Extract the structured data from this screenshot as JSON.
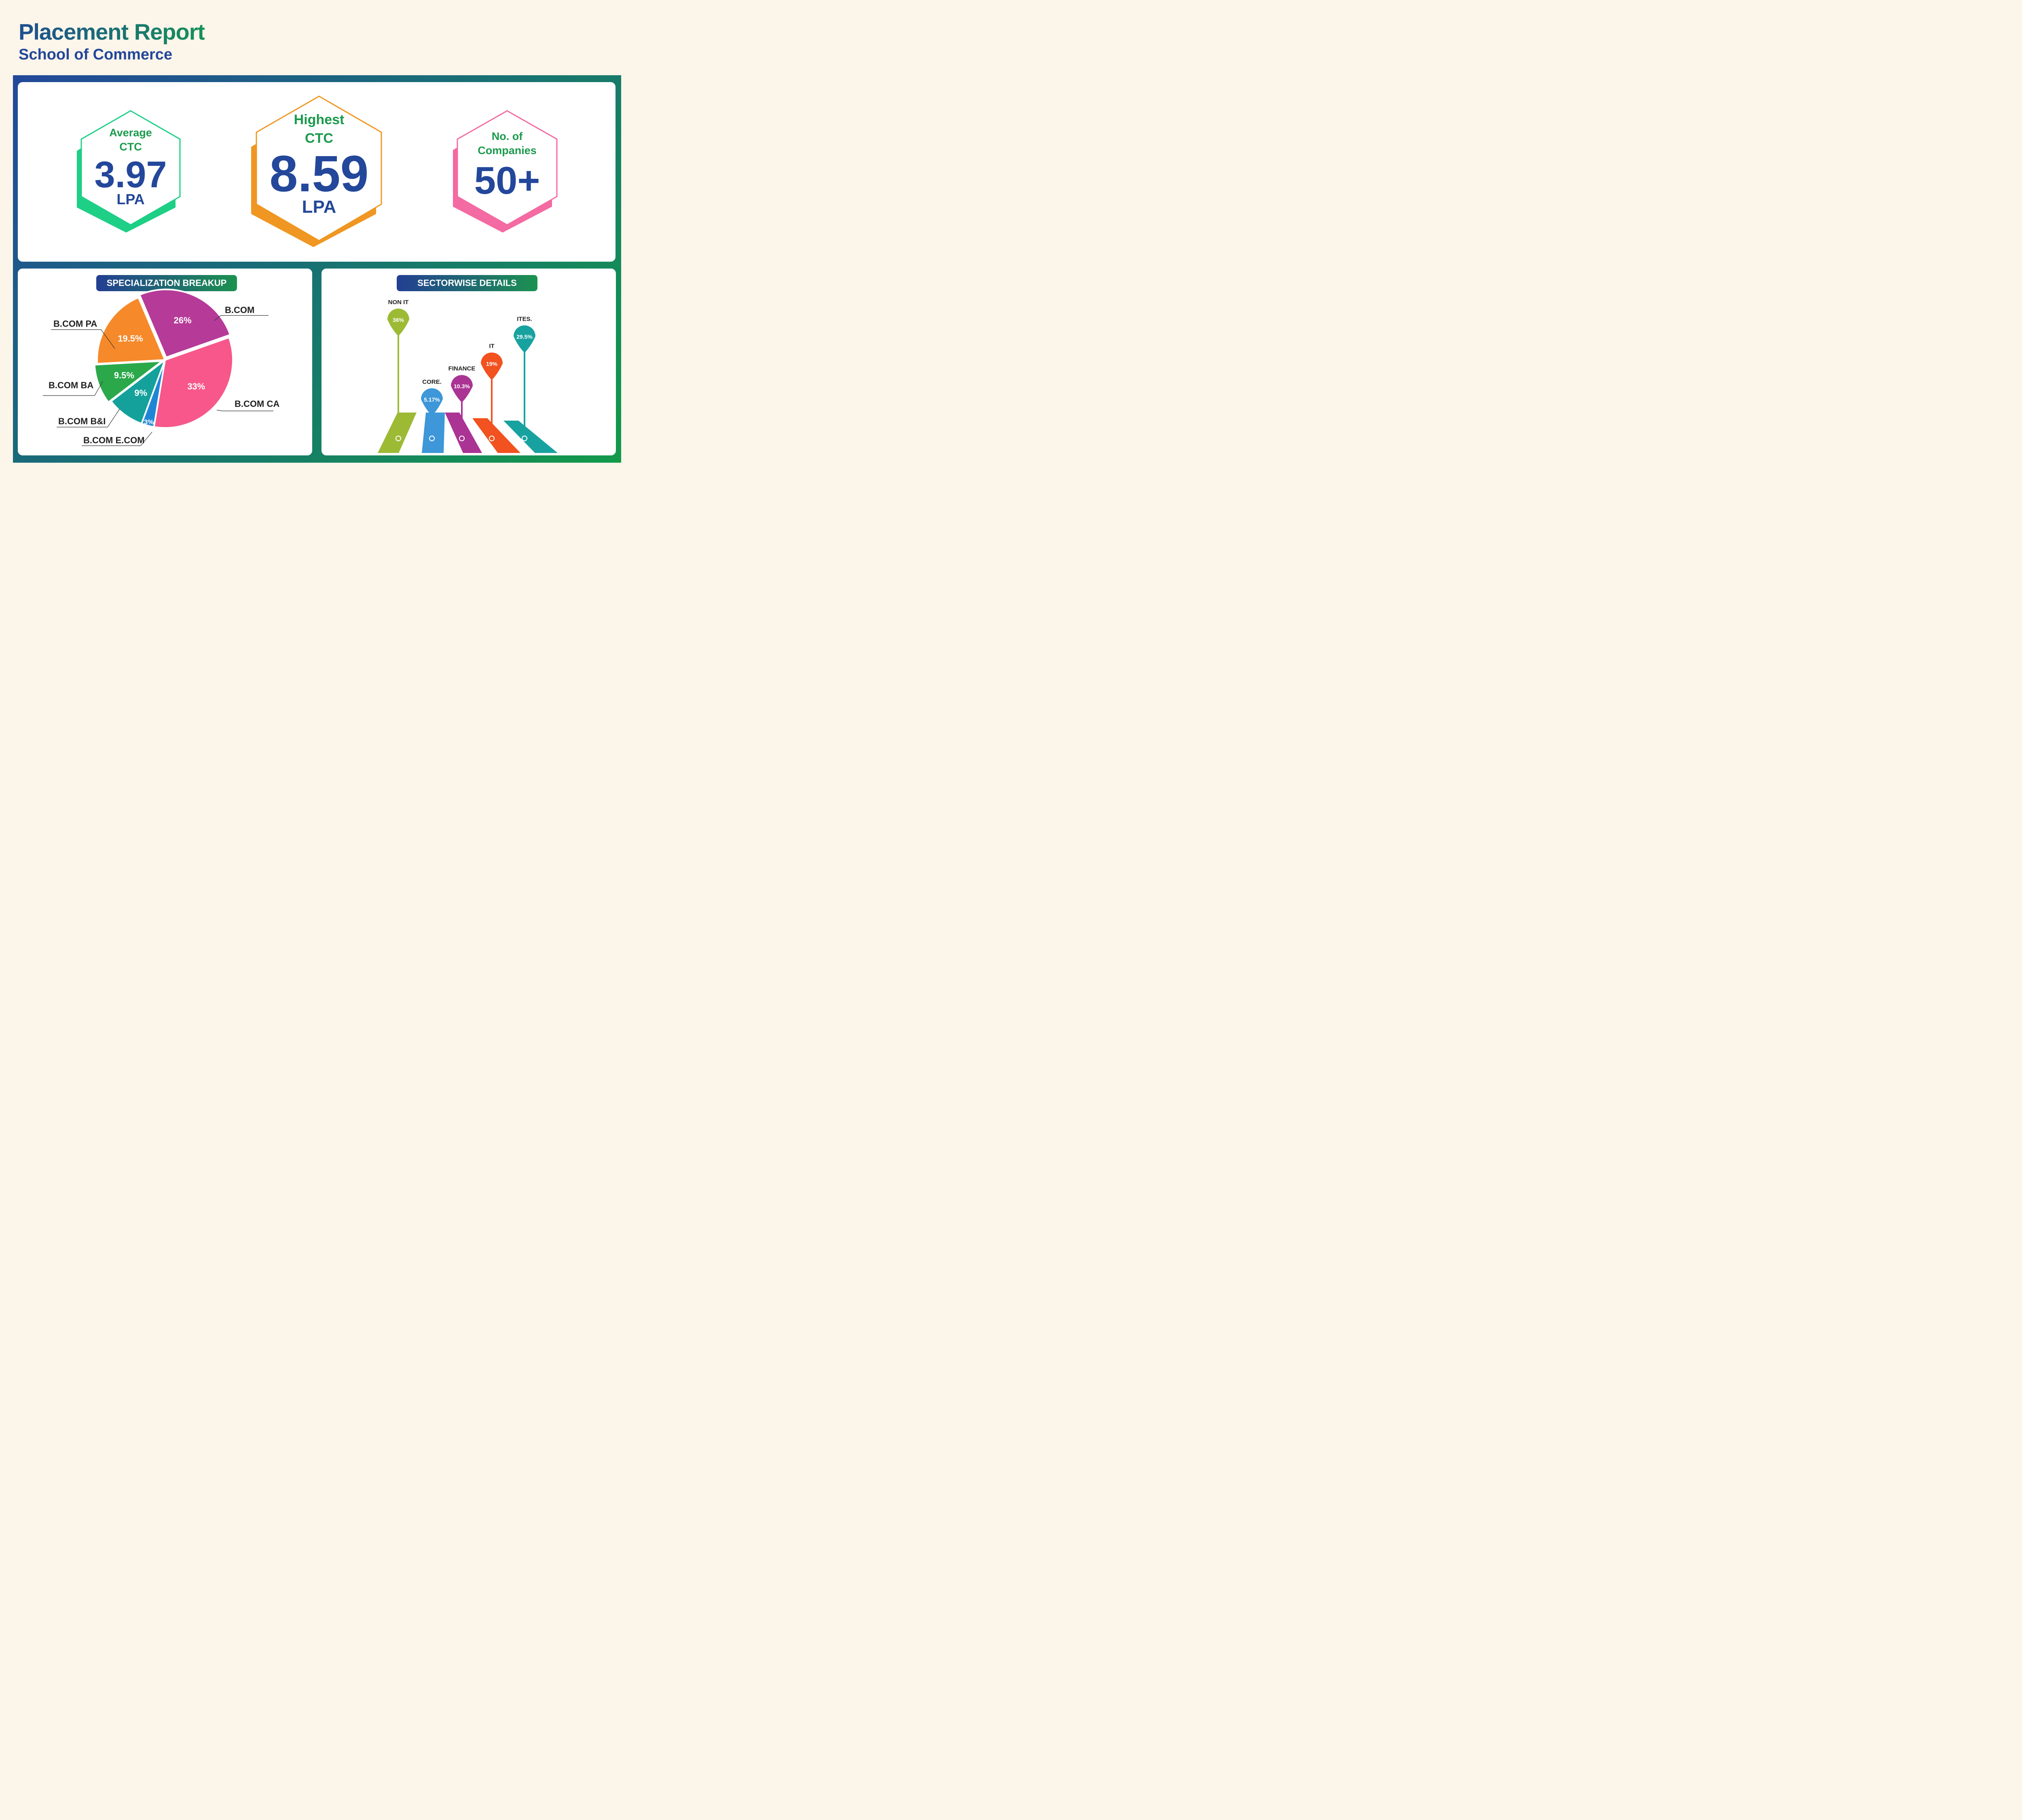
{
  "header": {
    "title": "Placement Report",
    "subtitle": "School of Commerce"
  },
  "kpis": {
    "average": {
      "label_line1": "Average",
      "label_line2": "CTC",
      "value": "3.97",
      "unit": "LPA",
      "color": "#1ecf86"
    },
    "highest": {
      "label_line1": "Highest",
      "label_line2": "CTC",
      "value": "8.59",
      "unit": "LPA",
      "color": "#ef9722"
    },
    "companies": {
      "label_line1": "No. of",
      "label_line2": "Companies",
      "value": "50+",
      "color": "#f46aa2"
    },
    "label_color": "#1a9a4c",
    "value_color": "#23479a"
  },
  "chart_data": [
    {
      "type": "pie",
      "title": "SPECIALIZATION BREAKUP",
      "slices": [
        {
          "label": "B.COM",
          "display": "26%",
          "value": 26,
          "color": "#b63a98"
        },
        {
          "label": "B.COM CA",
          "display": "33%",
          "value": 33,
          "color": "#f7578a"
        },
        {
          "label": "B.COM E.COM",
          "display": "3%",
          "value": 3,
          "color": "#1f86d6"
        },
        {
          "label": "B.COM B&I",
          "display": "9%",
          "value": 9,
          "color": "#14a19c"
        },
        {
          "label": "B.COM BA",
          "display": "9.5%",
          "value": 9.5,
          "color": "#2aa84a"
        },
        {
          "label": "B.COM PA",
          "display": "19.5%",
          "value": 19.5,
          "color": "#f6892a"
        }
      ]
    },
    {
      "type": "bar",
      "title": "SECTORWISE DETAILS",
      "categories": [
        "NON IT",
        "CORE.",
        "FINANCE",
        "IT",
        "ITES."
      ],
      "display": [
        "36%",
        "5.17%",
        "10.3%",
        "19%",
        "29.5%"
      ],
      "values": [
        36,
        5.17,
        10.3,
        19,
        29.5
      ],
      "colors": [
        "#9dba35",
        "#3d97d8",
        "#aa3394",
        "#f1521f",
        "#17a2a0"
      ]
    }
  ]
}
